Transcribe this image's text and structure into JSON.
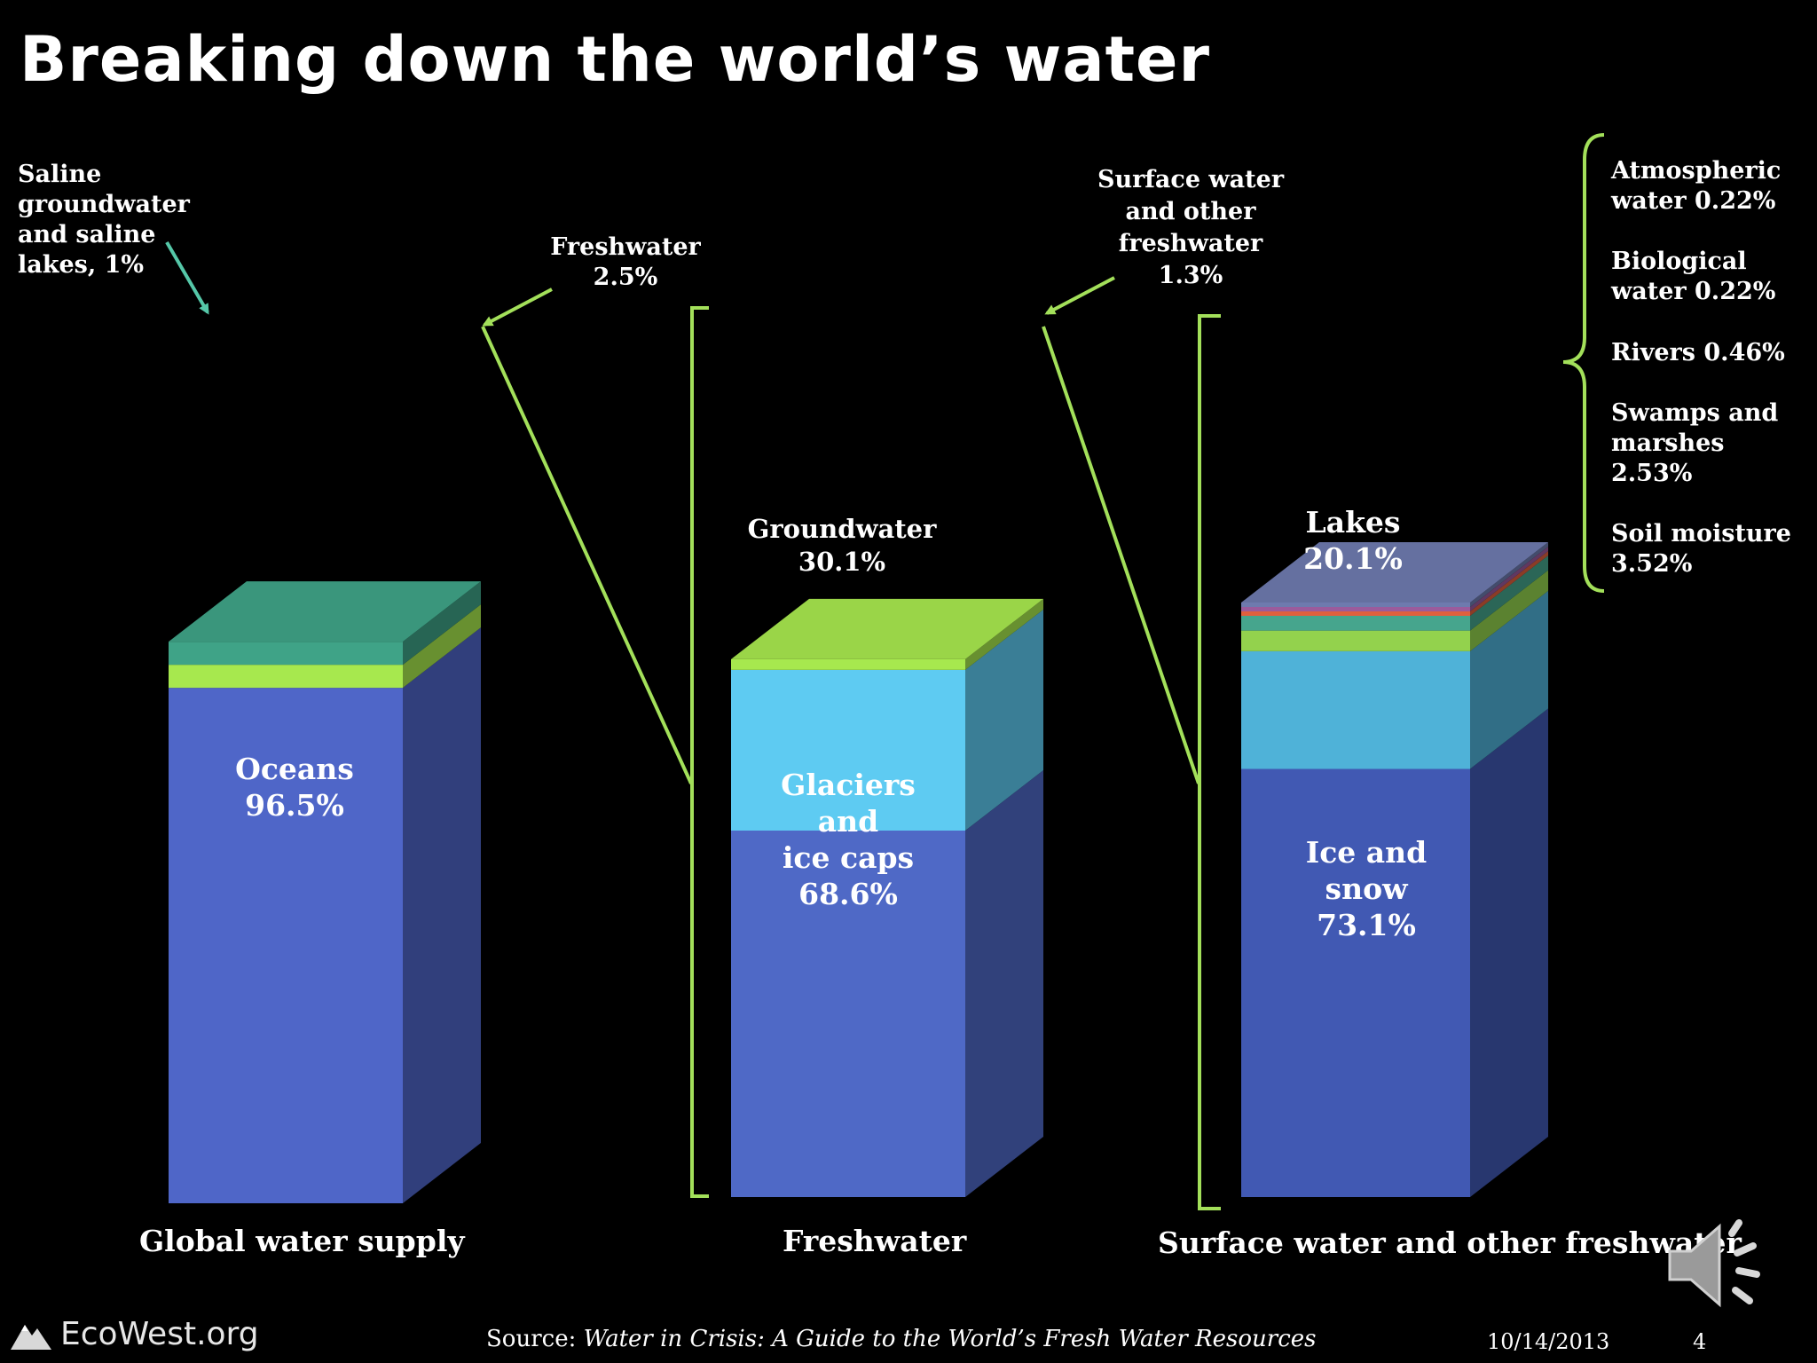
{
  "title": "Breaking down the world’s water",
  "annotations": {
    "saline": [
      "Saline",
      "groundwater",
      "and saline",
      "lakes, 1%"
    ],
    "freshwater": [
      "Freshwater",
      "2.5%"
    ],
    "surface": [
      "Surface water",
      "and other",
      "freshwater",
      "1.3%"
    ]
  },
  "chart_data": [
    {
      "type": "bar",
      "stacked": true,
      "title": "Global water supply",
      "categories": [
        "Global water supply"
      ],
      "series": [
        {
          "name": "Oceans",
          "values": [
            96.5
          ],
          "label": [
            "Oceans",
            "96.5%"
          ],
          "color": "#4f66c8"
        },
        {
          "name": "Freshwater",
          "values": [
            2.5
          ],
          "color": "#a7e84e"
        },
        {
          "name": "Saline groundwater and saline lakes",
          "values": [
            1
          ],
          "color": "#3fa387"
        }
      ]
    },
    {
      "type": "bar",
      "stacked": true,
      "title": "Freshwater",
      "categories": [
        "Freshwater"
      ],
      "series": [
        {
          "name": "Glaciers and ice caps",
          "values": [
            68.6
          ],
          "label": [
            "Glaciers",
            "and",
            "ice caps",
            "68.6%"
          ],
          "color": "#4f69c6"
        },
        {
          "name": "Groundwater",
          "values": [
            30.1
          ],
          "label": [
            "Groundwater",
            "30.1%"
          ],
          "color": "#5ecbf2"
        },
        {
          "name": "Surface water and other freshwater",
          "values": [
            1.3
          ],
          "color": "#a7e84e"
        }
      ]
    },
    {
      "type": "bar",
      "stacked": true,
      "title": "Surface water and other freshwater",
      "categories": [
        "Surface water and other freshwater"
      ],
      "series": [
        {
          "name": "Ice and snow",
          "values": [
            73.1
          ],
          "label": [
            "Ice and",
            "snow",
            "73.1%"
          ],
          "color": "#4159b3"
        },
        {
          "name": "Lakes",
          "values": [
            20.1
          ],
          "label": [
            "Lakes",
            "20.1%"
          ],
          "color": "#4fb2d8"
        },
        {
          "name": "Soil moisture",
          "values": [
            3.52
          ],
          "label": [
            "Soil moisture",
            "3.52%"
          ],
          "color": "#93d24d"
        },
        {
          "name": "Swamps and marshes",
          "values": [
            2.53
          ],
          "label": [
            "Swamps and",
            "marshes",
            "2.53%"
          ],
          "color": "#46a58d"
        },
        {
          "name": "Rivers",
          "values": [
            0.46
          ],
          "label": [
            "Rivers 0.46%"
          ],
          "color": "#e0603e"
        },
        {
          "name": "Biological water",
          "values": [
            0.22
          ],
          "label": [
            "Biological",
            "water 0.22%"
          ],
          "color": "#9b5b9c"
        },
        {
          "name": "Atmospheric water",
          "values": [
            0.22
          ],
          "label": [
            "Atmospheric",
            "water 0.22%"
          ],
          "color": "#6e7aae"
        }
      ]
    }
  ],
  "footer": {
    "logo": "EcoWest.org",
    "source_prefix": "Source: ",
    "source_title": "Water in Crisis: A Guide to the World’s Fresh Water Resources",
    "date": "10/14/2013",
    "page": "4"
  },
  "colors": {
    "background": "#000000",
    "connector": "#a3e05a",
    "saline_arrow": "#55c7a8",
    "text": "#ffffff"
  },
  "icons": {
    "logo": "mountain-icon",
    "audio": "speaker-icon"
  }
}
